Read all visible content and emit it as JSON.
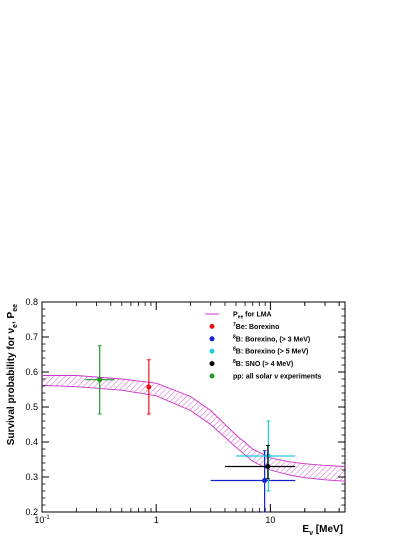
{
  "chart_data": {
    "type": "scatter",
    "x_scale": "log",
    "xlim": [
      0.1,
      45
    ],
    "ylim": [
      0.2,
      0.8
    ],
    "x_ticks": [
      {
        "value": 0.1,
        "label": "10",
        "sup": "-1"
      },
      {
        "value": 1,
        "label": "1",
        "sup": ""
      },
      {
        "value": 10,
        "label": "10",
        "sup": ""
      }
    ],
    "y_ticks": [
      "0.2",
      "0.3",
      "0.4",
      "0.5",
      "0.6",
      "0.7",
      "0.8"
    ],
    "xlabel": {
      "main": "E",
      "sub": "ν",
      "rest": " [MeV]"
    },
    "ylabel": {
      "main": "Survival probability for ν",
      "sub1": "e",
      "mid": ", P",
      "sub2": "ee"
    },
    "band": {
      "name_main": "P",
      "name_sub": "ee",
      "name_rest": " for LMA",
      "color": "#cc33cc",
      "x": [
        0.1,
        0.2,
        0.5,
        1.0,
        2.0,
        3.0,
        5.0,
        7.0,
        10.0,
        15.0,
        20.0,
        30.0,
        45.0
      ],
      "upper": [
        0.59,
        0.59,
        0.58,
        0.568,
        0.53,
        0.49,
        0.42,
        0.38,
        0.355,
        0.343,
        0.338,
        0.333,
        0.33
      ],
      "lower": [
        0.562,
        0.558,
        0.548,
        0.532,
        0.49,
        0.45,
        0.385,
        0.345,
        0.32,
        0.305,
        0.298,
        0.292,
        0.288
      ]
    },
    "series": [
      {
        "name_sup": "7",
        "name": "Be: Borexino",
        "color": "#ee1111",
        "points": [
          {
            "x": 0.862,
            "y": 0.557,
            "xerr": [
              0.862,
              0.862
            ],
            "yerr": [
              0.48,
              0.635
            ]
          }
        ]
      },
      {
        "name_sup": "8",
        "name": "B: Borexino, (> 3 MeV)",
        "color": "#1122cc",
        "points": [
          {
            "x": 8.9,
            "y": 0.29,
            "xerr": [
              3.0,
              16.5
            ],
            "yerr": [
              0.2,
              0.375
            ]
          }
        ]
      },
      {
        "name_sup": "8",
        "name": "B: Borexino (> 5 MeV)",
        "color": "#22ccdd",
        "points": [
          {
            "x": 9.6,
            "y": 0.36,
            "xerr": [
              5.0,
              16.5
            ],
            "yerr": [
              0.26,
              0.46
            ]
          }
        ]
      },
      {
        "name_sup": "8",
        "name": "B: SNO  (> 4 MeV)",
        "color": "#000000",
        "points": [
          {
            "x": 9.5,
            "y": 0.33,
            "xerr": [
              4.0,
              16.5
            ],
            "yerr": [
              0.295,
              0.39
            ]
          }
        ]
      },
      {
        "name_sup": "",
        "name": "pp: all solar ν experiments",
        "color": "#229922",
        "points": [
          {
            "x": 0.32,
            "y": 0.578,
            "xerr": [
              0.24,
              0.43
            ],
            "yerr": [
              0.48,
              0.675
            ]
          }
        ]
      }
    ]
  }
}
